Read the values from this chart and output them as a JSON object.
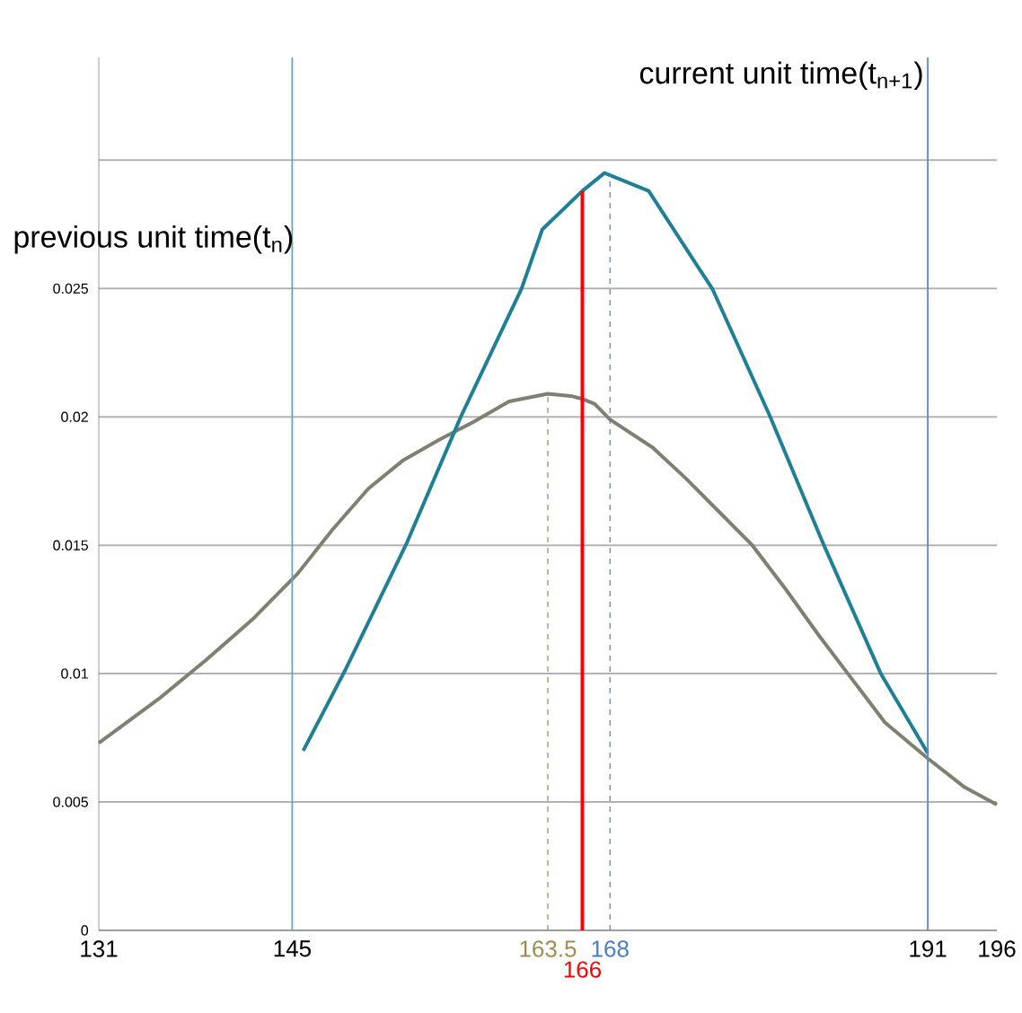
{
  "chart_data": {
    "type": "line",
    "annotations": [
      "current unit time(t$_{n+1}$)",
      "previous unit time(t$_{n}$)",
      {
        "text": "166",
        "x": 166,
        "y": 0
      }
    ],
    "series": [
      {
        "color": "#7f7f72",
        "x": [
          131,
          135.3,
          138.7,
          142.1,
          145.4,
          147.9,
          150.5,
          153.0,
          155.6,
          158.1,
          160.7,
          163.5,
          165.3,
          166,
          166.9,
          168,
          171.1,
          173.5,
          175.9,
          178.3,
          180.7,
          183.1,
          185.5,
          187.9,
          191,
          193.6,
          196
        ],
        "values": [
          0.0073,
          0.009,
          0.0105,
          0.0121,
          0.0139,
          0.0156,
          0.0172,
          0.0183,
          0.0191,
          0.0198,
          0.0206,
          0.0209,
          0.0208,
          0.0207,
          0.0205,
          0.0199,
          0.0188,
          0.0176,
          0.0163,
          0.015,
          0.0133,
          0.0115,
          0.0098,
          0.0081,
          0.0067,
          0.0056,
          0.0049
        ]
      },
      {
        "color": "#1f7f95",
        "x": [
          145.8,
          148.8,
          153.3,
          157.2,
          161.6,
          163.1,
          166,
          167.6,
          170.8,
          174.3,
          175.4,
          179.6,
          183.4,
          187.6,
          191
        ],
        "values": [
          0.007,
          0.0101,
          0.0151,
          0.02,
          0.025,
          0.0273,
          0.0288,
          0.0295,
          0.0288,
          0.0259,
          0.025,
          0.02,
          0.0151,
          0.01,
          0.0069
        ]
      },
      {
        "color": "#a08c50",
        "line_style": "dashed",
        "x": [
          163.5,
          163.5
        ],
        "values": [
          0,
          0.0209
        ]
      },
      {
        "color": "#ff0000",
        "line_style": "solid",
        "x": [
          166,
          166
        ],
        "values": [
          0,
          0.0288
        ]
      },
      {
        "color": "#4a7fc8",
        "line_style": "dashed",
        "x": [
          168,
          168
        ],
        "values": [
          0,
          0.0295
        ]
      }
    ],
    "xlim": [
      131,
      196
    ],
    "xticks": [
      131,
      145,
      163.5,
      168,
      191,
      196
    ],
    "ylim": [
      0,
      0.034
    ],
    "yticks": [
      0,
      0.005,
      0.01,
      0.015,
      0.02,
      0.025,
      {
        "value": 0.03,
        "label": null
      }
    ],
    "grid": "y",
    "ref_lines": [
      {
        "axis": "x",
        "value": 145,
        "color": "#5aaac8"
      },
      {
        "axis": "x",
        "value": 191,
        "color": "#5a8ac8"
      }
    ]
  }
}
